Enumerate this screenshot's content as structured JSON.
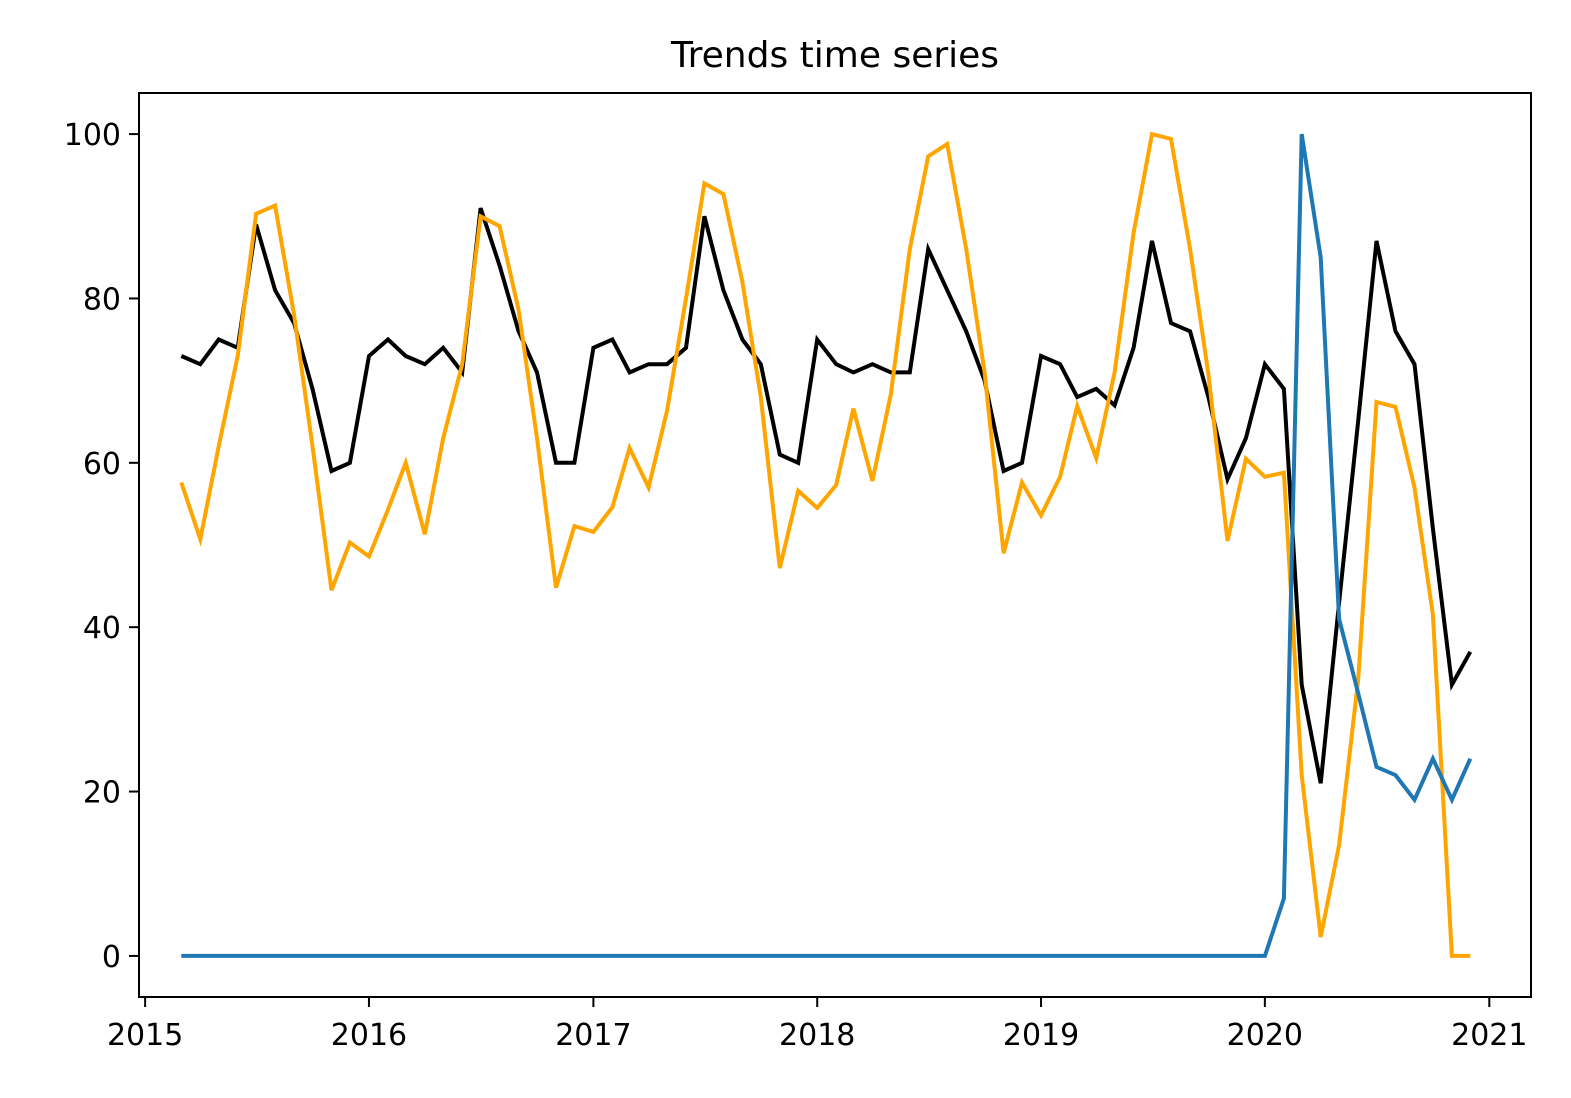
{
  "chart_data": {
    "type": "line",
    "title": "Trends time series",
    "xlabel": "",
    "ylabel": "",
    "x_axis": {
      "type": "date",
      "range": [
        "2014-12-22",
        "2021-03-10"
      ],
      "ticks": [
        "2015-01-01",
        "2016-01-01",
        "2017-01-01",
        "2018-01-01",
        "2019-01-01",
        "2020-01-01",
        "2021-01-01"
      ],
      "tick_labels": [
        "2015",
        "2016",
        "2017",
        "2018",
        "2019",
        "2020",
        "2021"
      ]
    },
    "y_axis": {
      "range": [
        -5,
        105
      ],
      "ticks": [
        0,
        20,
        40,
        60,
        80,
        100
      ],
      "tick_labels": [
        "0",
        "20",
        "40",
        "60",
        "80",
        "100"
      ]
    },
    "grid": false,
    "legend": "none",
    "x": [
      "2015-03",
      "2015-04",
      "2015-05",
      "2015-06",
      "2015-07",
      "2015-08",
      "2015-09",
      "2015-10",
      "2015-11",
      "2015-12",
      "2016-01",
      "2016-02",
      "2016-03",
      "2016-04",
      "2016-05",
      "2016-06",
      "2016-07",
      "2016-08",
      "2016-09",
      "2016-10",
      "2016-11",
      "2016-12",
      "2017-01",
      "2017-02",
      "2017-03",
      "2017-04",
      "2017-05",
      "2017-06",
      "2017-07",
      "2017-08",
      "2017-09",
      "2017-10",
      "2017-11",
      "2017-12",
      "2018-01",
      "2018-02",
      "2018-03",
      "2018-04",
      "2018-05",
      "2018-06",
      "2018-07",
      "2018-08",
      "2018-09",
      "2018-10",
      "2018-11",
      "2018-12",
      "2019-01",
      "2019-02",
      "2019-03",
      "2019-04",
      "2019-05",
      "2019-06",
      "2019-07",
      "2019-08",
      "2019-09",
      "2019-10",
      "2019-11",
      "2019-12",
      "2020-01",
      "2020-02",
      "2020-03",
      "2020-04",
      "2020-05",
      "2020-06",
      "2020-07",
      "2020-08",
      "2020-09",
      "2020-10",
      "2020-11",
      "2020-12"
    ],
    "series": [
      {
        "color": "#000000",
        "values": [
          73,
          72,
          75,
          74,
          89,
          81,
          77,
          69,
          59,
          60,
          73,
          75,
          73,
          72,
          74,
          71,
          91,
          84,
          76,
          71,
          60,
          60,
          74,
          75,
          71,
          72,
          72,
          74,
          90,
          81,
          75,
          72,
          61,
          60,
          75,
          72,
          71,
          72,
          71,
          71,
          86,
          81,
          76,
          70,
          59,
          60,
          73,
          72,
          68,
          69,
          67,
          74,
          87,
          77,
          76,
          68,
          58,
          63,
          72,
          69,
          33,
          21,
          43,
          65,
          87,
          76,
          72,
          52,
          33,
          37
        ]
      },
      {
        "color": "#ffa500",
        "values": [
          57.6,
          50.7,
          62,
          73,
          90.3,
          91.3,
          78,
          62,
          44.5,
          50.3,
          48.6,
          54.3,
          60,
          51.3,
          63,
          72,
          90,
          88.8,
          78.6,
          63,
          44.8,
          52.3,
          51.6,
          54.6,
          61.8,
          57,
          66.3,
          80,
          94,
          92.7,
          82,
          68,
          47.2,
          56.6,
          54.5,
          57.3,
          66.6,
          57.8,
          68.3,
          86,
          97.3,
          98.8,
          86,
          71,
          49,
          57.6,
          53.6,
          58.3,
          66.9,
          60.6,
          71,
          88,
          100,
          99.4,
          86,
          70.8,
          50.5,
          60.5,
          58.3,
          58.8,
          22,
          2.3,
          13.5,
          33.5,
          67.4,
          66.8,
          57,
          41.5,
          0,
          0
        ]
      },
      {
        "color": "#1f77b4",
        "values": [
          0,
          0,
          0,
          0,
          0,
          0,
          0,
          0,
          0,
          0,
          0,
          0,
          0,
          0,
          0,
          0,
          0,
          0,
          0,
          0,
          0,
          0,
          0,
          0,
          0,
          0,
          0,
          0,
          0,
          0,
          0,
          0,
          0,
          0,
          0,
          0,
          0,
          0,
          0,
          0,
          0,
          0,
          0,
          0,
          0,
          0,
          0,
          0,
          0,
          0,
          0,
          0,
          0,
          0,
          0,
          0,
          0,
          0,
          0,
          7,
          100,
          85,
          41,
          32,
          23,
          22,
          19,
          24,
          19,
          24
        ]
      }
    ]
  }
}
